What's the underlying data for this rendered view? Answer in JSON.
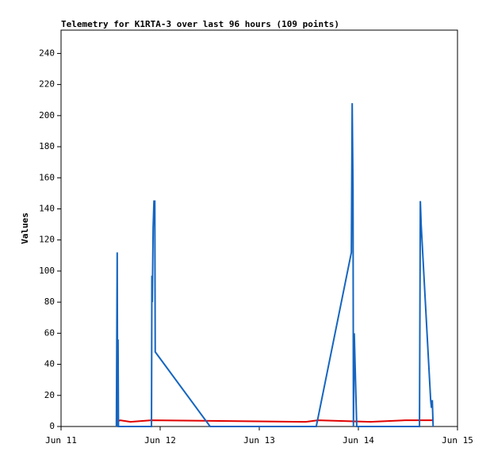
{
  "chart_data": {
    "type": "line",
    "title": "Telemetry for K1RTA-3 over last 96 hours (109 points)",
    "y_label": "Values",
    "xlim": [
      0,
      96
    ],
    "xticks": [
      {
        "value": 0,
        "label": "Jun 11"
      },
      {
        "value": 24,
        "label": "Jun 12"
      },
      {
        "value": 48,
        "label": "Jun 13"
      },
      {
        "value": 72,
        "label": "Jun 14"
      },
      {
        "value": 96,
        "label": "Jun 15"
      }
    ],
    "ylim": [
      0,
      255
    ],
    "yticks": [
      0,
      20,
      40,
      60,
      80,
      100,
      120,
      140,
      160,
      180,
      200,
      220,
      240
    ],
    "series": [
      {
        "color": "#e00000",
        "x": [
          13.4,
          14.3,
          16.8,
          21.9,
          59.3,
          62.2,
          74.9,
          83.4,
          90.1
        ],
        "values": [
          3,
          4,
          3,
          4,
          3,
          4,
          3,
          4,
          4
        ]
      },
      {
        "color": "#1565c0",
        "x": [
          13.4,
          13.6,
          13.7,
          13.8,
          13.9,
          21.9,
          22.0,
          22.1,
          22.3,
          22.5,
          22.7,
          22.8,
          36.1,
          61.8,
          70.3,
          70.5,
          70.7,
          70.8,
          71.0,
          71.2,
          71.6,
          86.8,
          87.0,
          87.2,
          89.5,
          89.7,
          89.9,
          90.1
        ],
        "values": [
          0,
          112,
          0,
          56,
          0,
          0,
          97,
          80,
          128,
          145,
          145,
          48,
          0,
          0,
          112,
          208,
          152,
          0,
          60,
          40,
          0,
          0,
          145,
          130,
          17,
          12,
          17,
          0
        ]
      }
    ]
  }
}
